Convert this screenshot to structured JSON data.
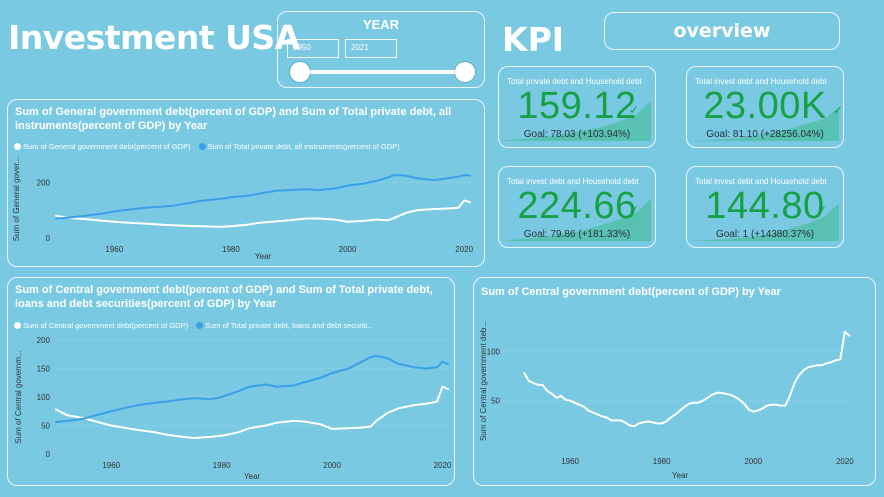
{
  "header": {
    "title": "Investment USA",
    "kpi_heading": "KPI",
    "overview_button": "overview"
  },
  "year_filter": {
    "label": "YEAR",
    "start": "1950",
    "end": "2021"
  },
  "kpis": [
    {
      "title": "Total private debt and Household debt",
      "value": "159.12",
      "goal": "Goal: 78.03 (+103.94%)"
    },
    {
      "title": "Total invest debt and Household debt",
      "value": "23.00K",
      "goal": "Goal: 81.10 (+28256.04%)"
    },
    {
      "title": "Total invest debt and Household debt",
      "value": "224.66",
      "goal": "Goal: 79.86 (+181.33%)"
    },
    {
      "title": "Total invest debt and Household debt",
      "value": "144.80",
      "goal": "Goal: 1 (+14380.37%)"
    }
  ],
  "colors": {
    "background": "#79c9e3",
    "series_white": "#ffffff",
    "series_blue": "#3aa0e8",
    "kpi_green": "#18a046"
  },
  "chart_data": [
    {
      "type": "line",
      "title": "Sum of General government debt(percent of GDP) and Sum of Total private debt, all instruments(percent of GDP) by Year",
      "xlabel": "Year",
      "ylabel": "Sum of General gover...",
      "xlim": [
        1950,
        2021
      ],
      "ylim": [
        0,
        280
      ],
      "yticks": [
        0,
        200
      ],
      "xticks": [
        1960,
        1980,
        2000,
        2020
      ],
      "x": [
        1950,
        1952,
        1955,
        1958,
        1960,
        1963,
        1965,
        1968,
        1970,
        1973,
        1975,
        1978,
        1980,
        1983,
        1985,
        1988,
        1990,
        1993,
        1995,
        1998,
        2000,
        2003,
        2005,
        2007,
        2008,
        2010,
        2012,
        2015,
        2017,
        2019,
        2020,
        2021
      ],
      "series": [
        {
          "name": "Sum of General government debt(percent of GDP)",
          "values": [
            80,
            72,
            68,
            62,
            58,
            54,
            52,
            48,
            46,
            43,
            42,
            40,
            42,
            48,
            55,
            60,
            64,
            70,
            70,
            66,
            58,
            62,
            66,
            64,
            72,
            90,
            100,
            104,
            106,
            108,
            135,
            128
          ]
        },
        {
          "name": "Sum of Total private debt, all instruments(percent of GDP)",
          "values": [
            70,
            73,
            80,
            88,
            95,
            103,
            108,
            112,
            116,
            126,
            134,
            140,
            146,
            152,
            160,
            170,
            172,
            175,
            172,
            178,
            188,
            196,
            205,
            218,
            226,
            224,
            214,
            208,
            214,
            220,
            226,
            224
          ]
        }
      ]
    },
    {
      "type": "line",
      "title": "Sum of Central government debt(percent of GDP) and Sum of Total private debt, loans and debt securities(percent of GDP) by Year",
      "xlabel": "Year",
      "ylabel": "Sum of Central governm...",
      "xlim": [
        1950,
        2021
      ],
      "ylim": [
        0,
        200
      ],
      "yticks": [
        0,
        50,
        100,
        150,
        200
      ],
      "xticks": [
        1960,
        1980,
        2000,
        2020
      ],
      "x": [
        1950,
        1952,
        1955,
        1958,
        1960,
        1963,
        1965,
        1968,
        1970,
        1973,
        1975,
        1978,
        1980,
        1983,
        1985,
        1988,
        1990,
        1993,
        1995,
        1998,
        2000,
        2003,
        2005,
        2007,
        2008,
        2010,
        2012,
        2015,
        2017,
        2019,
        2020,
        2021
      ],
      "series": [
        {
          "name": "Sum of Central government debt(percent of GDP)",
          "values": [
            78,
            68,
            63,
            55,
            50,
            45,
            42,
            38,
            34,
            30,
            28,
            30,
            32,
            38,
            45,
            50,
            55,
            58,
            57,
            52,
            44,
            45,
            46,
            48,
            58,
            72,
            80,
            86,
            88,
            92,
            118,
            114
          ]
        },
        {
          "name": "Sum of Total private debt, loans and debt securiti...",
          "values": [
            56,
            58,
            62,
            70,
            75,
            82,
            86,
            90,
            92,
            96,
            98,
            96,
            100,
            110,
            118,
            122,
            118,
            120,
            126,
            134,
            142,
            150,
            160,
            170,
            172,
            168,
            158,
            152,
            150,
            152,
            162,
            158
          ]
        }
      ]
    },
    {
      "type": "line",
      "title": "Sum of Central government debt(percent of GDP) by Year",
      "xlabel": "Year",
      "ylabel": "Sum of Central government deb...",
      "xlim": [
        1946,
        2022
      ],
      "ylim": [
        0,
        140
      ],
      "yticks": [
        50,
        100
      ],
      "xticks": [
        1960,
        1980,
        2000,
        2020
      ],
      "x": [
        1950,
        1951,
        1952,
        1953,
        1954,
        1955,
        1956,
        1957,
        1958,
        1959,
        1960,
        1961,
        1962,
        1963,
        1964,
        1965,
        1966,
        1967,
        1968,
        1969,
        1970,
        1971,
        1972,
        1973,
        1974,
        1975,
        1976,
        1977,
        1978,
        1979,
        1980,
        1981,
        1982,
        1983,
        1984,
        1985,
        1986,
        1987,
        1988,
        1989,
        1990,
        1991,
        1992,
        1993,
        1994,
        1995,
        1996,
        1997,
        1998,
        1999,
        2000,
        2001,
        2002,
        2003,
        2004,
        2005,
        2006,
        2007,
        2008,
        2009,
        2010,
        2011,
        2012,
        2013,
        2014,
        2015,
        2016,
        2017,
        2018,
        2019,
        2020,
        2021
      ],
      "series": [
        {
          "name": "Sum of Central government debt(percent of GDP)",
          "values": [
            78,
            70,
            68,
            66,
            66,
            60,
            57,
            53,
            55,
            51,
            50,
            48,
            46,
            44,
            40,
            38,
            36,
            34,
            33,
            30,
            30,
            30,
            28,
            25,
            24,
            27,
            28,
            29,
            28,
            27,
            27,
            29,
            33,
            36,
            40,
            44,
            47,
            48,
            48,
            50,
            53,
            56,
            58,
            58,
            57,
            56,
            54,
            51,
            47,
            41,
            39,
            40,
            42,
            45,
            46,
            46,
            45,
            45,
            55,
            68,
            76,
            81,
            84,
            85,
            86,
            86,
            88,
            89,
            91,
            92,
            120,
            116
          ]
        }
      ]
    }
  ]
}
